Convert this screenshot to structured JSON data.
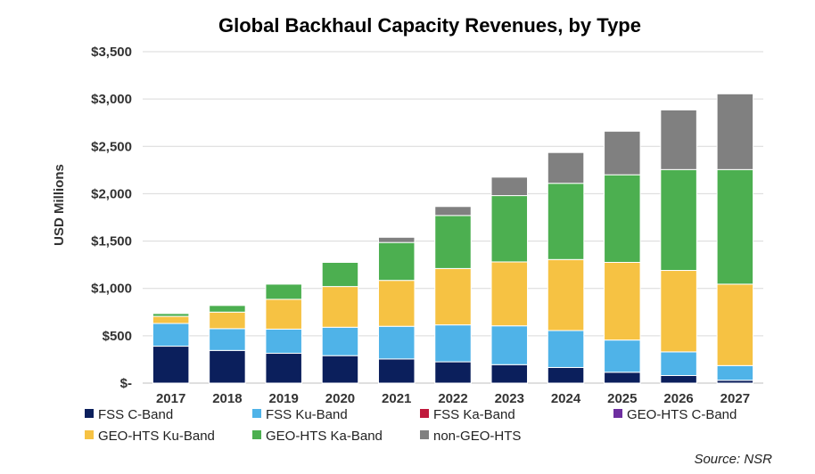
{
  "chart_data": {
    "type": "bar",
    "stacked": true,
    "title": "Global Backhaul Capacity Revenues, by Type",
    "ylabel": "USD Millions",
    "xlabel": "",
    "ylim": [
      0,
      3500
    ],
    "yticks": [
      0,
      500,
      1000,
      1500,
      2000,
      2500,
      3000,
      3500
    ],
    "ytick_labels": [
      "$-",
      "$500",
      "$1,000",
      "$1,500",
      "$2,000",
      "$2,500",
      "$3,000",
      "$3,500"
    ],
    "grid": true,
    "legend_position": "bottom",
    "categories": [
      "2017",
      "2018",
      "2019",
      "2020",
      "2021",
      "2022",
      "2023",
      "2024",
      "2025",
      "2026",
      "2027"
    ],
    "series": [
      {
        "name": "FSS C-Band",
        "color": "#0b1f5c",
        "values": [
          390,
          345,
          315,
          290,
          255,
          225,
          195,
          165,
          115,
          80,
          30
        ]
      },
      {
        "name": "FSS Ku-Band",
        "color": "#4fb3e8",
        "values": [
          240,
          230,
          255,
          300,
          345,
          390,
          410,
          390,
          340,
          250,
          155
        ]
      },
      {
        "name": "FSS Ka-Band",
        "color": "#c0193c",
        "values": [
          0,
          0,
          0,
          0,
          0,
          0,
          0,
          0,
          0,
          0,
          0
        ]
      },
      {
        "name": "GEO-HTS C-Band",
        "color": "#6e2fa0",
        "values": [
          0,
          0,
          0,
          0,
          0,
          0,
          0,
          0,
          0,
          0,
          0
        ]
      },
      {
        "name": "GEO-HTS Ku-Band",
        "color": "#f6c243",
        "values": [
          75,
          175,
          315,
          430,
          485,
          595,
          675,
          750,
          820,
          860,
          860
        ]
      },
      {
        "name": "GEO-HTS Ka-Band",
        "color": "#4caf50",
        "values": [
          30,
          70,
          160,
          255,
          400,
          560,
          700,
          805,
          925,
          1065,
          1210
        ]
      },
      {
        "name": "non-GEO-HTS",
        "color": "#808080",
        "values": [
          0,
          0,
          0,
          0,
          55,
          95,
          195,
          325,
          460,
          630,
          800
        ]
      }
    ],
    "source": "Source: NSR"
  }
}
